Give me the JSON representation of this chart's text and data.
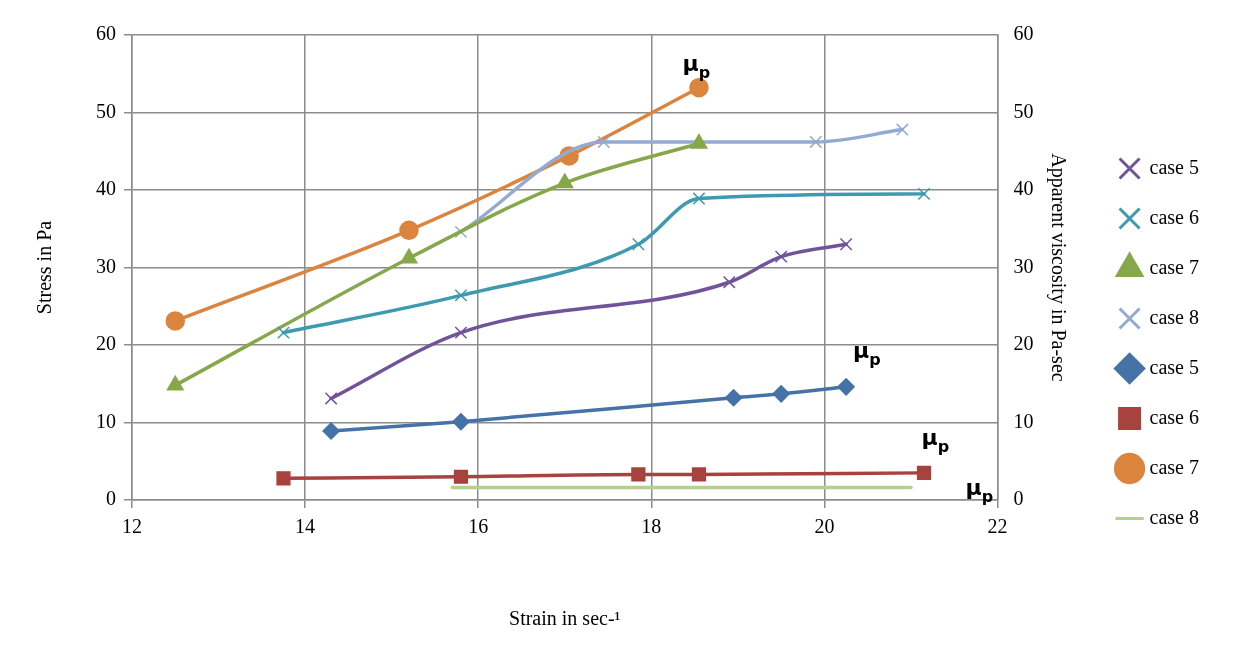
{
  "chart_data": {
    "type": "line",
    "xlabel": "Strain in sec-¹",
    "ylabel": "Stress in Pa",
    "y2label": "Apparent viscosity in Pa-sec",
    "xlim": [
      12,
      22
    ],
    "xticks": [
      12,
      14,
      16,
      18,
      20,
      22
    ],
    "ylim": [
      0,
      60
    ],
    "yticks": [
      0,
      10,
      20,
      30,
      40,
      50,
      60
    ],
    "y2lim": [
      0,
      60
    ],
    "y2ticks": [
      0,
      10,
      20,
      30,
      40,
      50,
      60
    ],
    "grid": true,
    "legend": "right",
    "series": [
      {
        "name": "case 5",
        "color": "#71539a",
        "marker": "cross",
        "x": [
          14.3,
          15.8,
          18.9,
          19.5,
          20.25
        ],
        "values": [
          13.1,
          21.6,
          28.1,
          31.4,
          33.0
        ]
      },
      {
        "name": "case 6",
        "color": "#3d9ab0",
        "marker": "cross",
        "x": [
          13.75,
          15.8,
          17.85,
          18.55,
          21.15
        ],
        "values": [
          21.6,
          26.4,
          33.0,
          38.9,
          39.5
        ]
      },
      {
        "name": "case 7",
        "color": "#87a84a",
        "marker": "triangle",
        "x": [
          12.5,
          15.2,
          17.0,
          18.55
        ],
        "values": [
          14.8,
          31.2,
          40.9,
          46.0
        ]
      },
      {
        "name": "case 8",
        "color": "#93aad3",
        "marker": "cross",
        "x": [
          15.8,
          17.45,
          19.9,
          20.9
        ],
        "values": [
          34.6,
          46.2,
          46.2,
          47.8
        ]
      },
      {
        "name": "case 5",
        "color": "#4572a7",
        "marker": "diamond",
        "axis": "y2",
        "x": [
          14.3,
          15.8,
          18.95,
          19.5,
          20.25
        ],
        "values": [
          8.9,
          10.1,
          13.2,
          13.7,
          14.6
        ]
      },
      {
        "name": "case 6",
        "color": "#a8423f",
        "marker": "square",
        "axis": "y2",
        "x": [
          13.75,
          15.8,
          17.85,
          18.55,
          21.15
        ],
        "values": [
          2.8,
          3.0,
          3.3,
          3.3,
          3.5
        ]
      },
      {
        "name": "case 7",
        "color": "#db843d",
        "marker": "circle",
        "axis": "y2",
        "x": [
          12.5,
          15.2,
          17.05,
          18.55
        ],
        "values": [
          23.1,
          34.8,
          44.4,
          53.2
        ]
      },
      {
        "name": "case 8",
        "color": "#b5cf91",
        "marker": "none",
        "axis": "y2",
        "x": [
          15.7,
          21.0
        ],
        "values": [
          1.6,
          1.6
        ]
      }
    ],
    "annotations": [
      "μ$_{p}$",
      "μ$_{p}$",
      "μ$_{p}$",
      "μ$_{p}$"
    ]
  }
}
